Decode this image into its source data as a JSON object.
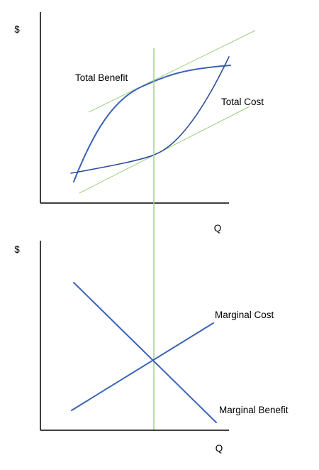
{
  "top_panel": {
    "y_axis_label": "$",
    "x_axis_label": "Q",
    "total_benefit_label": "Total Benefit",
    "total_cost_label": "Total Cost"
  },
  "bottom_panel": {
    "y_axis_label": "$",
    "x_axis_label": "Q",
    "marginal_cost_label": "Marginal Cost",
    "marginal_benefit_label": "Marginal Benefit"
  },
  "colors": {
    "curve_blue": "#3a63b5",
    "curve_dark_blue": "#2f4e99",
    "tangent_green": "#9ccf7e",
    "optimum_line_green": "#a6d189",
    "axis_black": "#000000"
  }
}
